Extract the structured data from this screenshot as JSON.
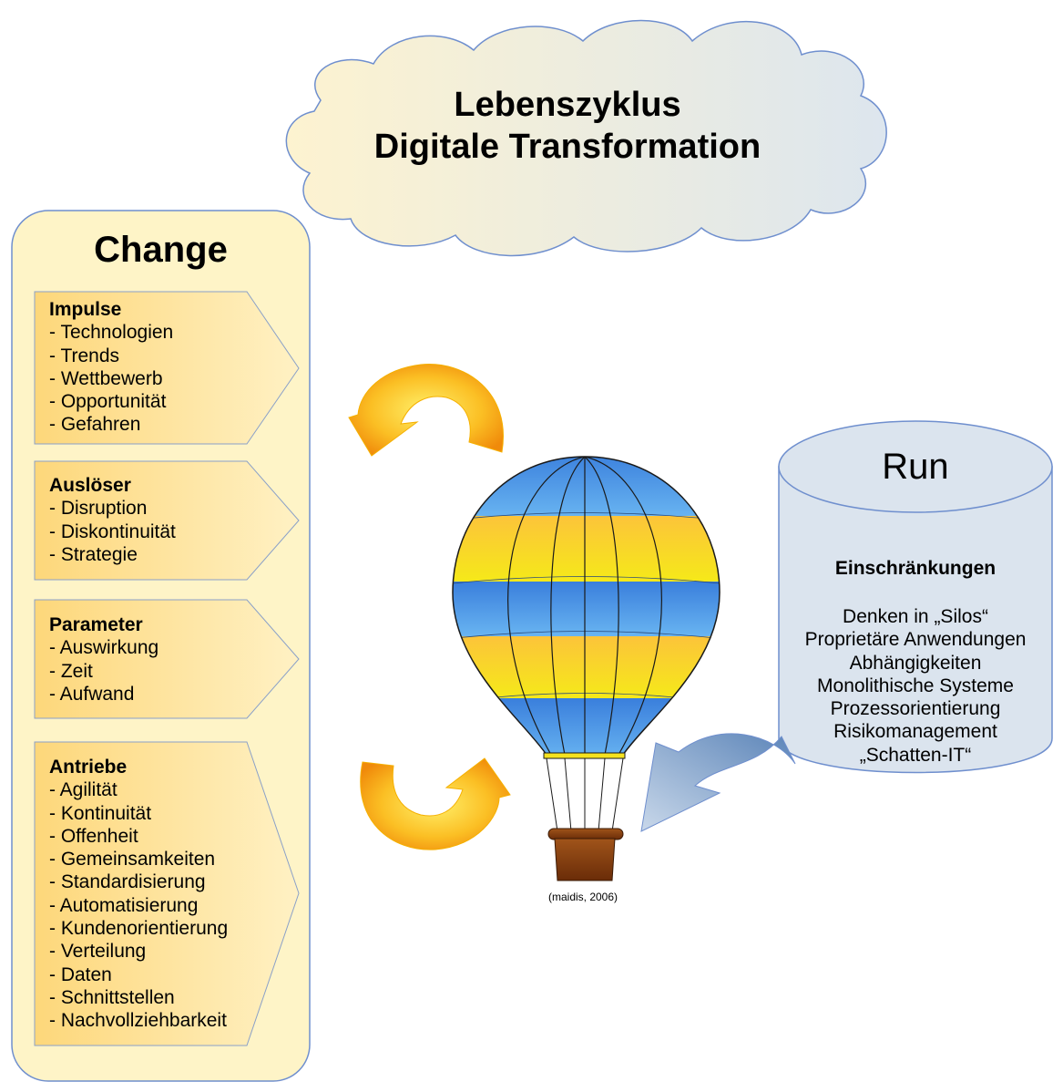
{
  "title_lines": [
    "Lebenszyklus",
    "Digitale Transformation"
  ],
  "change": {
    "title": "Change",
    "boxes": [
      {
        "heading": "Impulse",
        "items": [
          "- Technologien",
          "- Trends",
          "- Wettbewerb",
          "- Opportunität",
          "- Gefahren"
        ]
      },
      {
        "heading": "Auslöser",
        "items": [
          "- Disruption",
          "- Diskontinuität",
          "- Strategie"
        ]
      },
      {
        "heading": "Parameter",
        "items": [
          "- Auswirkung",
          "- Zeit",
          "- Aufwand"
        ]
      },
      {
        "heading": "Antriebe",
        "items": [
          "- Agilität",
          "- Kontinuität",
          "- Offenheit",
          "- Gemeinsamkeiten",
          "- Standardisierung",
          "- Automatisierung",
          "- Kundenorientierung",
          "- Verteilung",
          "- Daten",
          "- Schnittstellen",
          "- Nachvollziehbarkeit"
        ]
      }
    ]
  },
  "run": {
    "title": "Run",
    "subtitle": "Einschränkungen",
    "items": [
      "Denken in „Silos“",
      "Proprietäre Anwendungen",
      "Abhängigkeiten",
      "Monolithische Systeme",
      "Prozessorientierung",
      "Risikomanagement",
      "„Schatten-IT“"
    ]
  },
  "balloon_credit": "(maidis, 2006)",
  "colors": {
    "change_panel_fill": "#fef4c7",
    "change_panel_stroke": "#6f8fce",
    "arrow_box_fill": "#fde08a",
    "run_fill": "#dbe4ee",
    "balloon_blue": "#4a90e2",
    "balloon_yellow": "#f5e21f",
    "cycle_arrow_orange": "#f5a623"
  }
}
